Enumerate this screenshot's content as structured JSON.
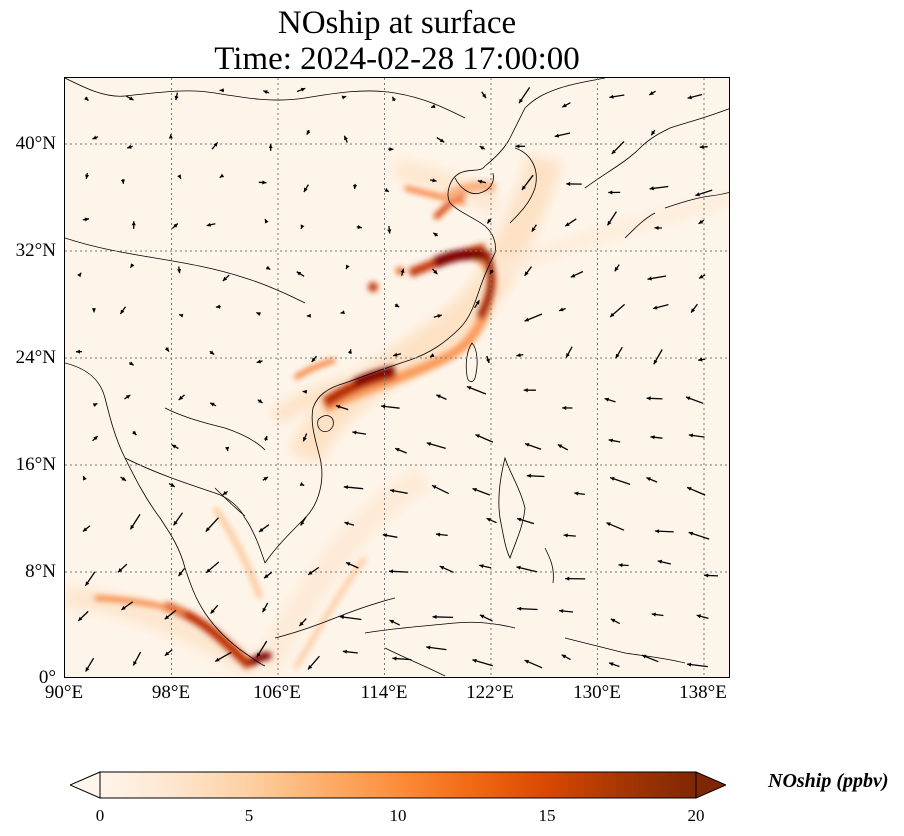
{
  "title_line1": "NOship at surface",
  "title_line2": "Time: 2024-02-28 17:00:00",
  "lat_ticks": [
    "40°N",
    "32°N",
    "24°N",
    "16°N",
    "8°N",
    "0°"
  ],
  "lon_ticks": [
    "90°E",
    "98°E",
    "106°E",
    "114°E",
    "122°E",
    "130°E",
    "138°E"
  ],
  "colorbar": {
    "label": "NOship (ppbv)",
    "ticks": [
      "0",
      "5",
      "10",
      "15",
      "20"
    ],
    "min": 0,
    "max": 20,
    "extend": "both",
    "colors": [
      "#fff5eb",
      "#fee6ce",
      "#fdd0a2",
      "#fdae6b",
      "#fd8d3c",
      "#f16913",
      "#d94801",
      "#a63603",
      "#7f2704"
    ]
  },
  "extent": {
    "lon": [
      90,
      140
    ],
    "lat": [
      0,
      45
    ]
  },
  "gridlines": {
    "lon": [
      98,
      106,
      114,
      122,
      130,
      138
    ],
    "lat": [
      8,
      16,
      24,
      32,
      40
    ],
    "style": "dotted"
  }
}
